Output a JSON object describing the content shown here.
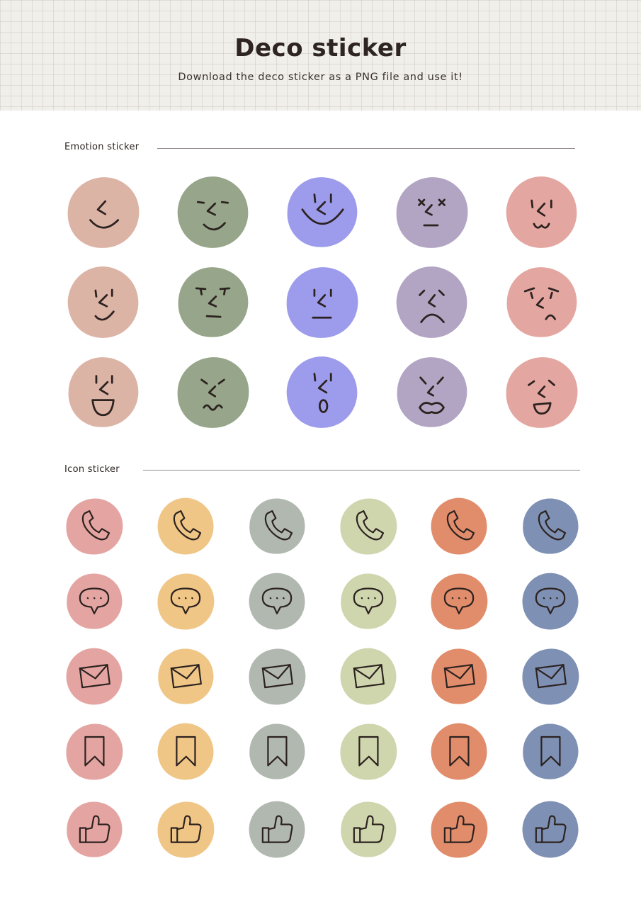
{
  "header": {
    "title": "Deco sticker",
    "subtitle": "Download the deco sticker as a PNG file and use it!"
  },
  "sections": {
    "emotion": {
      "title": "Emotion sticker"
    },
    "icon": {
      "title": "Icon sticker"
    }
  },
  "emotion_colors": [
    "#dcb4a6",
    "#97a68a",
    "#9d9cec",
    "#b2a5c4",
    "#e4a6a1"
  ],
  "emotion_rows": [
    [
      "smile-face-icon",
      "content-face-icon",
      "grin-face-icon",
      "dizzy-face-icon",
      "cute-face-icon"
    ],
    [
      "smirk-face-icon",
      "annoyed-face-icon",
      "neutral-face-icon",
      "sad-face-icon",
      "upset-face-icon"
    ],
    [
      "laugh-face-icon",
      "grumpy-face-icon",
      "surprised-face-icon",
      "angry-face-icon",
      "giggle-face-icon"
    ]
  ],
  "icon_colors": [
    "#e4a5a2",
    "#efc686",
    "#b0b8b0",
    "#cfd6ad",
    "#e18d6c",
    "#7e90b3"
  ],
  "icon_rows": [
    "phone-icon",
    "speech-bubble-icon",
    "envelope-icon",
    "bookmark-icon",
    "thumbs-up-icon"
  ]
}
